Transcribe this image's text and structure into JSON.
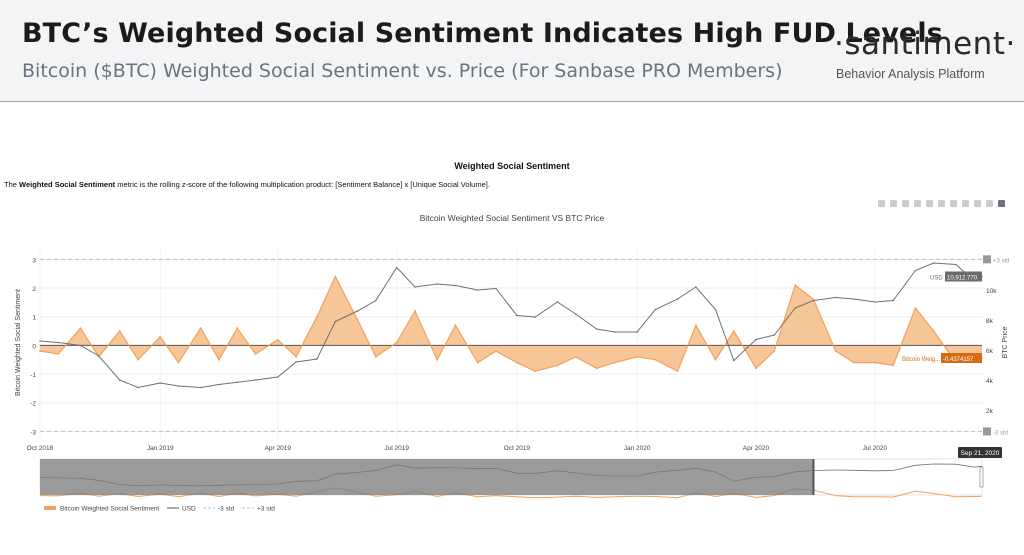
{
  "header": {
    "title": "BTC’s Weighted Social Sentiment Indicates High FUD Levels",
    "subtitle": "Bitcoin ($BTC) Weighted Social Sentiment vs. Price (For Sanbase PRO Members)",
    "brand": "·santiment·",
    "brand_tagline": "Behavior Analysis Platform"
  },
  "panel": {
    "heading": "Weighted Social Sentiment",
    "desc_prefix": "The ",
    "desc_bold": "Weighted Social Sentiment",
    "desc_rest": " metric is the rolling z-score of the following multiplication product: [Sentiment Balance] x [Unique Social Volume]."
  },
  "modebar": {
    "icons": [
      "camera-icon",
      "zoom-icon",
      "pan-icon",
      "zoom-in-icon",
      "zoom-out-icon",
      "autoscale-icon",
      "reset-axes-icon",
      "spike-lines-icon",
      "hover-closest-icon",
      "hover-compare-icon",
      "plotly-logo-icon"
    ]
  },
  "colors": {
    "sentiment": "#f0a15c",
    "sentiment_fill": "#f5bc86",
    "price": "#707070",
    "zero_line": "#555555",
    "std_line": "#bfbfbf",
    "tag_orange": "#d46b12",
    "tag_gray": "#6b6b6b"
  },
  "chart_data": {
    "type": "line",
    "title": "Bitcoin Weighted Social Sentiment VS BTC Price",
    "ylabel": "Bitcoin Weighted Social Sentiment",
    "y2label": "BTC Price",
    "ylim": [
      -3.3,
      3.5
    ],
    "y2lim": [
      0,
      13000
    ],
    "y_ticks": [
      "3",
      "2",
      "1",
      "0",
      "-1",
      "-2",
      "-3"
    ],
    "y_tick_values": [
      3,
      2,
      1,
      0,
      -1,
      -2,
      -3
    ],
    "y2_ticks": [
      "10k",
      "8k",
      "6k",
      "4k",
      "2k"
    ],
    "y2_tick_values": [
      10000,
      8000,
      6000,
      4000,
      2000
    ],
    "x_ticks": [
      "Oct 2018",
      "Jan 2019",
      "Apr 2019",
      "Jul 2019",
      "Oct 2019",
      "Jan 2020",
      "Apr 2020",
      "Jul 2020"
    ],
    "x_tick_dates": [
      "2018-10-01",
      "2019-01-01",
      "2019-04-01",
      "2019-07-01",
      "2019-10-01",
      "2020-01-01",
      "2020-04-01",
      "2020-07-01"
    ],
    "x_start": "2018-10-01",
    "x_end": "2020-09-21",
    "hover_date": "Sep 21, 2020",
    "std_upper": 3,
    "std_lower": -3,
    "std_upper_label": "+3 std",
    "std_lower_label": "-3 std",
    "last_usd_label": "USD",
    "last_usd_value": "10,912.770",
    "last_sentiment_label": "Bitcoin Weig...",
    "last_sentiment_value": "-0.4374157",
    "range_selector": {
      "from": "2020-05-15",
      "to": "2020-09-21"
    },
    "legend": [
      "Bitcoin Weighted Social Sentiment",
      "USD",
      "-3 std",
      "+3 std"
    ],
    "grid": true,
    "series": [
      {
        "name": "Bitcoin Weighted Social Sentiment",
        "x": [
          "2018-10-01",
          "2018-10-15",
          "2018-11-01",
          "2018-11-15",
          "2018-12-01",
          "2018-12-15",
          "2019-01-01",
          "2019-01-15",
          "2019-02-01",
          "2019-02-15",
          "2019-03-01",
          "2019-03-15",
          "2019-04-01",
          "2019-04-15",
          "2019-05-01",
          "2019-05-15",
          "2019-06-01",
          "2019-06-15",
          "2019-07-01",
          "2019-07-15",
          "2019-08-01",
          "2019-08-15",
          "2019-09-01",
          "2019-09-15",
          "2019-10-01",
          "2019-10-15",
          "2019-11-01",
          "2019-11-15",
          "2019-12-01",
          "2019-12-15",
          "2020-01-01",
          "2020-01-15",
          "2020-02-01",
          "2020-02-15",
          "2020-03-01",
          "2020-03-15",
          "2020-04-01",
          "2020-04-15",
          "2020-05-01",
          "2020-05-15",
          "2020-06-01",
          "2020-06-15",
          "2020-07-01",
          "2020-07-15",
          "2020-08-01",
          "2020-08-15",
          "2020-09-01",
          "2020-09-15",
          "2020-09-21"
        ],
        "values": [
          -0.2,
          -0.3,
          0.6,
          -0.4,
          0.5,
          -0.5,
          0.3,
          -0.6,
          0.6,
          -0.5,
          0.6,
          -0.3,
          0.2,
          -0.4,
          1.0,
          2.4,
          0.9,
          -0.4,
          0.1,
          1.2,
          -0.5,
          0.7,
          -0.6,
          -0.2,
          -0.6,
          -0.9,
          -0.7,
          -0.4,
          -0.8,
          -0.6,
          -0.4,
          -0.5,
          -0.9,
          0.7,
          -0.5,
          0.5,
          -0.8,
          -0.2,
          2.1,
          1.6,
          -0.2,
          -0.6,
          -0.6,
          -0.7,
          1.3,
          0.5,
          -0.6,
          -0.5,
          -0.44
        ]
      },
      {
        "name": "USD",
        "x": [
          "2018-10-01",
          "2018-10-15",
          "2018-11-01",
          "2018-11-15",
          "2018-12-01",
          "2018-12-15",
          "2019-01-01",
          "2019-01-15",
          "2019-02-01",
          "2019-02-15",
          "2019-03-01",
          "2019-03-15",
          "2019-04-01",
          "2019-04-15",
          "2019-05-01",
          "2019-05-15",
          "2019-06-01",
          "2019-06-15",
          "2019-07-01",
          "2019-07-15",
          "2019-08-01",
          "2019-08-15",
          "2019-09-01",
          "2019-09-15",
          "2019-10-01",
          "2019-10-15",
          "2019-11-01",
          "2019-11-15",
          "2019-12-01",
          "2019-12-15",
          "2020-01-01",
          "2020-01-15",
          "2020-02-01",
          "2020-02-15",
          "2020-03-01",
          "2020-03-15",
          "2020-04-01",
          "2020-04-15",
          "2020-05-01",
          "2020-05-15",
          "2020-06-01",
          "2020-06-15",
          "2020-07-01",
          "2020-07-15",
          "2020-08-01",
          "2020-08-15",
          "2020-09-01",
          "2020-09-15",
          "2020-09-21"
        ],
        "values": [
          6600,
          6500,
          6300,
          5600,
          4000,
          3500,
          3800,
          3600,
          3500,
          3700,
          3850,
          4000,
          4200,
          5200,
          5400,
          7900,
          8600,
          9300,
          11500,
          10200,
          10400,
          10300,
          10000,
          10100,
          8300,
          8200,
          9200,
          8400,
          7400,
          7200,
          7200,
          8700,
          9400,
          10200,
          8700,
          5300,
          6700,
          7000,
          8800,
          9300,
          9500,
          9400,
          9200,
          9300,
          11300,
          11800,
          11700,
          10600,
          10900
        ]
      }
    ]
  }
}
